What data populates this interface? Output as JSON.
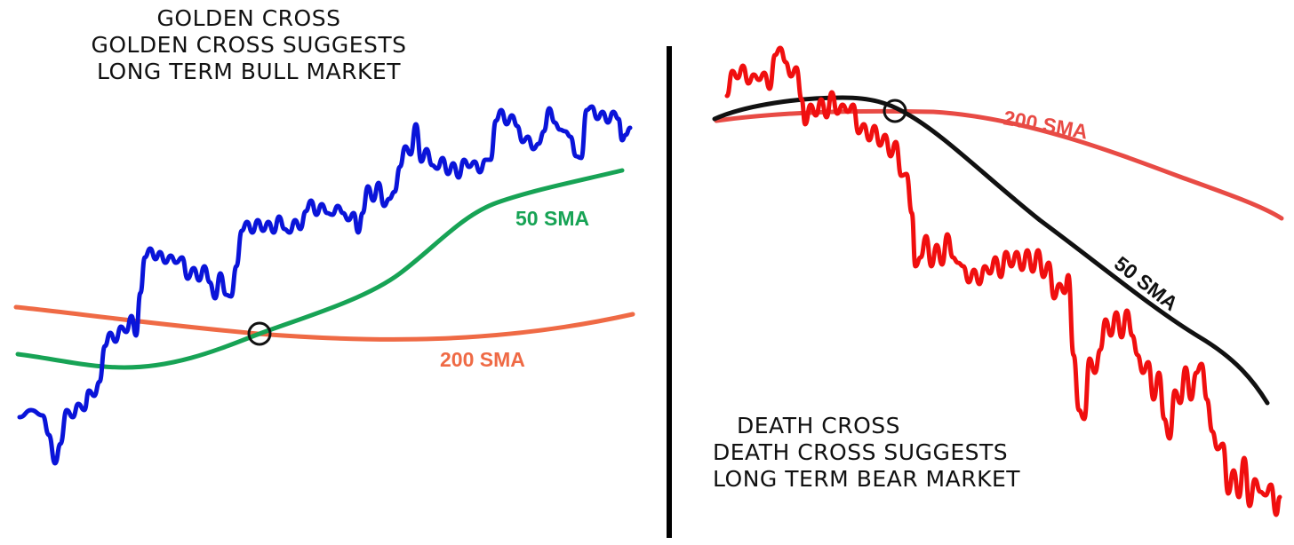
{
  "left_panel": {
    "title_lines": [
      "GOLDEN CROSS",
      "GOLDEN CROSS SUGGESTS",
      "LONG TERM BULL MARKET"
    ],
    "labels": {
      "sma50": "50 SMA",
      "sma200": "200 SMA"
    },
    "colors": {
      "price": "#0a14d9",
      "sma50": "#17a355",
      "sma200": "#ef6a45",
      "marker": "#111111"
    }
  },
  "right_panel": {
    "title_lines": [
      "DEATH CROSS",
      "DEATH CROSS SUGGESTS",
      "LONG TERM BEAR MARKET"
    ],
    "labels": {
      "sma200": "200 SMA",
      "sma50": "50 SMA"
    },
    "colors": {
      "price": "#f00f0f",
      "sma200": "#e84b45",
      "sma50": "#111111",
      "marker": "#111111"
    }
  },
  "divider_color": "#000000"
}
